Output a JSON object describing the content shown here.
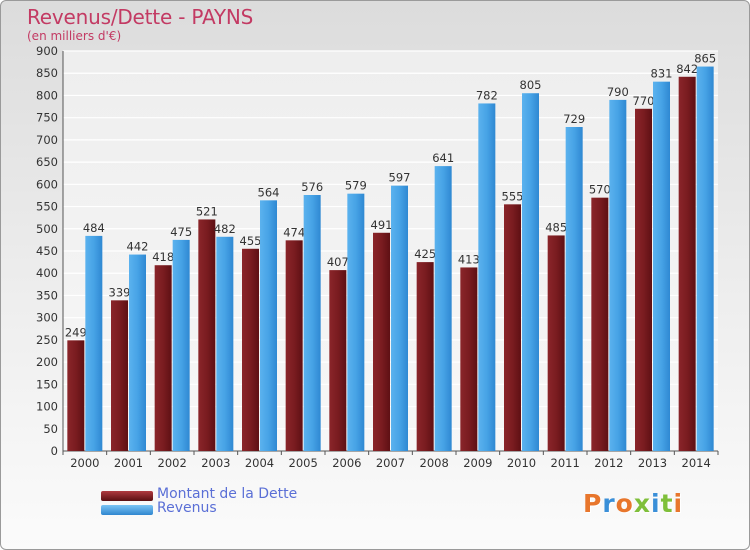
{
  "chart_data": {
    "type": "bar",
    "title": "Revenus/Dette - PAYNS",
    "subtitle": "(en milliers d'€)",
    "categories": [
      "2000",
      "2001",
      "2002",
      "2003",
      "2004",
      "2005",
      "2006",
      "2007",
      "2008",
      "2009",
      "2010",
      "2011",
      "2012",
      "2013",
      "2014"
    ],
    "series": [
      {
        "name": "Montant de la Dette",
        "color": "#7a1c20",
        "values": [
          249,
          339,
          418,
          521,
          455,
          474,
          407,
          491,
          425,
          413,
          555,
          485,
          570,
          770,
          842
        ]
      },
      {
        "name": "Revenus",
        "color": "#47a3e6",
        "values": [
          484,
          442,
          475,
          482,
          564,
          576,
          579,
          597,
          641,
          782,
          805,
          729,
          790,
          831,
          865
        ]
      }
    ],
    "ylim": [
      0,
      900
    ],
    "yticks": [
      0,
      50,
      100,
      150,
      200,
      250,
      300,
      350,
      400,
      450,
      500,
      550,
      600,
      650,
      700,
      750,
      800,
      850,
      900
    ],
    "grid": true,
    "legend_position": "bottom-left"
  },
  "logo": {
    "text": "Proxiti",
    "colors": [
      "#e8762c",
      "#3a8fd8",
      "#e8762c",
      "#7fbf3a",
      "#3a8fd8",
      "#7fbf3a",
      "#e8762c"
    ]
  }
}
